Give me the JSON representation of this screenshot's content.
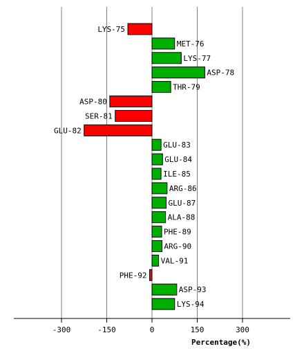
{
  "chart_data": {
    "type": "bar",
    "orientation": "horizontal",
    "title": "",
    "xlabel": "Percentage(%)",
    "ylabel": "",
    "xlim": [
      -460,
      460
    ],
    "xticks": [
      -300,
      -150,
      0,
      150,
      300
    ],
    "xtick_labels": [
      "-300",
      "-150",
      "0",
      "150",
      "300"
    ],
    "grid": "vertical",
    "legend": "none",
    "colors": {
      "positive": "#00b000",
      "negative": "#ff0000",
      "grid": "#808080",
      "outline": "#000000"
    },
    "categories": [
      "LYS-75",
      "MET-76",
      "LYS-77",
      "ASP-78",
      "THR-79",
      "ASP-80",
      "SER-81",
      "GLU-82",
      "GLU-83",
      "GLU-84",
      "ILE-85",
      "ARG-86",
      "GLU-87",
      "ALA-88",
      "PHE-89",
      "ARG-90",
      "VAL-91",
      "PHE-92",
      "ASP-93",
      "LYS-94"
    ],
    "values": [
      -80,
      75,
      97,
      175,
      62,
      -140,
      -122,
      -225,
      30,
      35,
      30,
      50,
      47,
      45,
      32,
      33,
      22,
      -8,
      82,
      75
    ]
  }
}
